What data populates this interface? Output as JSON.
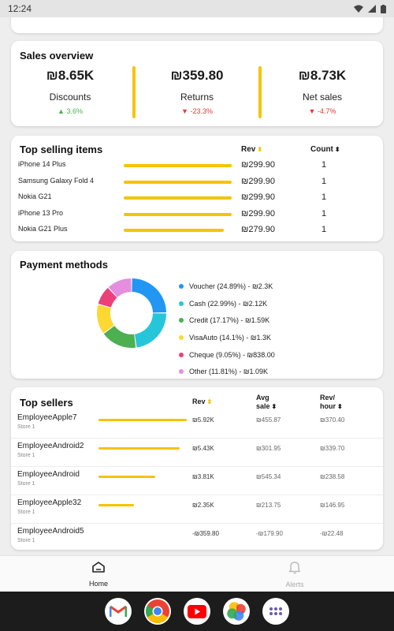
{
  "status": {
    "time": "12:24"
  },
  "sales_overview": {
    "title": "Sales overview",
    "metrics": [
      {
        "value": "₪8.65K",
        "label": "Discounts",
        "change": "3.6%",
        "direction": "up"
      },
      {
        "value": "₪359.80",
        "label": "Returns",
        "change": "-23.3%",
        "direction": "down"
      },
      {
        "value": "₪8.73K",
        "label": "Net sales",
        "change": "-4.7%",
        "direction": "down"
      }
    ]
  },
  "top_items": {
    "title": "Top selling items",
    "col_rev": "Rev",
    "col_count": "Count",
    "rows": [
      {
        "name": "iPhone 14 Plus",
        "rev": "₪299.90",
        "count": "1",
        "fraction": 1.0
      },
      {
        "name": "Samsung Galaxy Fold 4",
        "rev": "₪299.90",
        "count": "1",
        "fraction": 1.0
      },
      {
        "name": "Nokia G21",
        "rev": "₪299.90",
        "count": "1",
        "fraction": 1.0
      },
      {
        "name": "iPhone 13 Pro",
        "rev": "₪299.90",
        "count": "1",
        "fraction": 1.0
      },
      {
        "name": "Nokia G21 Plus",
        "rev": "₪279.90",
        "count": "1",
        "fraction": 0.93
      }
    ]
  },
  "payments": {
    "title": "Payment methods",
    "items": [
      {
        "label": "Voucher (24.89%) - ₪2.3K",
        "percent": 24.89,
        "color": "#2196f3"
      },
      {
        "label": "Cash (22.99%) - ₪2.12K",
        "percent": 22.99,
        "color": "#26c6da"
      },
      {
        "label": "Credit (17.17%) - ₪1.59K",
        "percent": 17.17,
        "color": "#4caf50"
      },
      {
        "label": "VisaAuto (14.1%) - ₪1.3K",
        "percent": 14.1,
        "color": "#fdd835"
      },
      {
        "label": "Cheque (9.05%) - ₪838.00",
        "percent": 9.05,
        "color": "#ec407a"
      },
      {
        "label": "Other (11.81%) - ₪1.09K",
        "percent": 11.81,
        "color": "#e48ee0"
      }
    ]
  },
  "sellers": {
    "title": "Top sellers",
    "col_rev": "Rev",
    "col_avg_1": "Avg",
    "col_avg_2": "sale",
    "col_rph_1": "Rev/",
    "col_rph_2": "hour",
    "rows": [
      {
        "name": "EmployeeApple7",
        "store": "Store 1",
        "rev": "₪5.92K",
        "avg": "₪455.87",
        "rph": "₪370.40",
        "fraction": 1.0
      },
      {
        "name": "EmployeeAndroid2",
        "store": "Store 1",
        "rev": "₪5.43K",
        "avg": "₪301.95",
        "rph": "₪339.70",
        "fraction": 0.92
      },
      {
        "name": "EmployeeAndroid",
        "store": "Store 1",
        "rev": "₪3.81K",
        "avg": "₪545.34",
        "rph": "₪238.58",
        "fraction": 0.64
      },
      {
        "name": "EmployeeApple32",
        "store": "Store 1",
        "rev": "₪2.35K",
        "avg": "₪213.75",
        "rph": "₪146.95",
        "fraction": 0.4
      },
      {
        "name": "EmployeeAndroid5",
        "store": "Store 1",
        "rev": "-₪359.80",
        "avg": "-₪179.90",
        "rph": "-₪22.48",
        "fraction": 0
      }
    ]
  },
  "nav": {
    "home": "Home",
    "alerts": "Alerts"
  },
  "taskbar": [
    "gmail-icon",
    "chrome-icon",
    "youtube-icon",
    "photos-icon",
    "app-drawer-icon"
  ]
}
